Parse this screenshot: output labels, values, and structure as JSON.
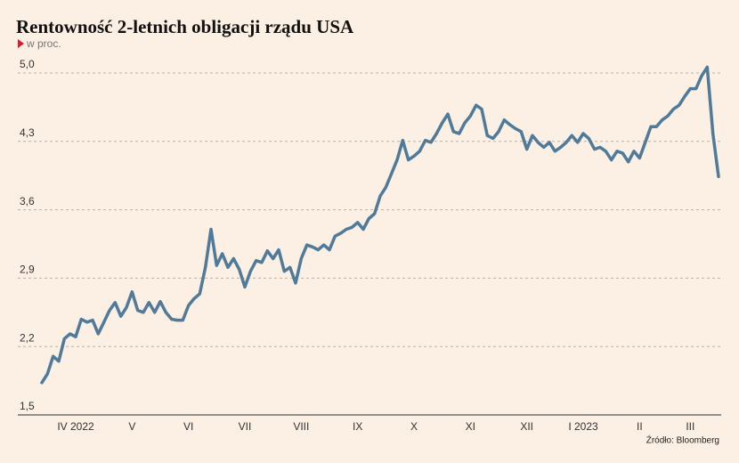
{
  "chart_data": {
    "type": "line",
    "title": "Rentowność 2-letnich obligacji rządu USA",
    "subtitle": "w proc.",
    "source": "Źródło: Bloomberg",
    "color": "#4f7a99",
    "grid": true,
    "ylim": [
      1.5,
      5.0
    ],
    "yticks": [
      {
        "value": 1.5,
        "label": "1,5"
      },
      {
        "value": 2.2,
        "label": "2,2"
      },
      {
        "value": 2.9,
        "label": "2,9"
      },
      {
        "value": 3.6,
        "label": "3,6"
      },
      {
        "value": 4.3,
        "label": "4,3"
      },
      {
        "value": 5.0,
        "label": "5,0"
      }
    ],
    "categories": [
      null,
      null,
      null,
      null,
      null,
      null,
      "IV 2022",
      null,
      null,
      null,
      null,
      null,
      null,
      null,
      null,
      null,
      "V",
      null,
      null,
      null,
      null,
      null,
      null,
      null,
      null,
      null,
      "VI",
      null,
      null,
      null,
      null,
      null,
      null,
      null,
      null,
      null,
      "VII",
      null,
      null,
      null,
      null,
      null,
      null,
      null,
      null,
      null,
      "VIII",
      null,
      null,
      null,
      null,
      null,
      null,
      null,
      null,
      null,
      "IX",
      null,
      null,
      null,
      null,
      null,
      null,
      null,
      null,
      null,
      "X",
      null,
      null,
      null,
      null,
      null,
      null,
      null,
      null,
      null,
      "XI",
      null,
      null,
      null,
      null,
      null,
      null,
      null,
      null,
      null,
      "XII",
      null,
      null,
      null,
      null,
      null,
      null,
      null,
      null,
      null,
      "I 2023",
      null,
      null,
      null,
      null,
      null,
      null,
      null,
      null,
      null,
      "II",
      null,
      null,
      null,
      null,
      null,
      null,
      null,
      null,
      "III",
      null,
      null,
      null,
      null,
      null
    ],
    "values": [
      1.83,
      1.92,
      2.1,
      2.05,
      2.28,
      2.33,
      2.3,
      2.48,
      2.45,
      2.47,
      2.33,
      2.45,
      2.57,
      2.65,
      2.51,
      2.6,
      2.76,
      2.57,
      2.55,
      2.65,
      2.55,
      2.66,
      2.55,
      2.48,
      2.47,
      2.47,
      2.62,
      2.69,
      2.74,
      3.01,
      3.4,
      3.03,
      3.15,
      3.01,
      3.1,
      2.99,
      2.81,
      2.97,
      3.08,
      3.06,
      3.18,
      3.1,
      3.19,
      2.97,
      3.01,
      2.85,
      3.1,
      3.24,
      3.22,
      3.19,
      3.24,
      3.19,
      3.33,
      3.36,
      3.4,
      3.42,
      3.47,
      3.4,
      3.51,
      3.56,
      3.74,
      3.83,
      3.97,
      4.11,
      4.31,
      4.11,
      4.15,
      4.2,
      4.31,
      4.29,
      4.38,
      4.49,
      4.58,
      4.4,
      4.38,
      4.49,
      4.56,
      4.67,
      4.63,
      4.36,
      4.33,
      4.4,
      4.52,
      4.47,
      4.43,
      4.4,
      4.22,
      4.36,
      4.29,
      4.24,
      4.29,
      4.2,
      4.24,
      4.29,
      4.36,
      4.29,
      4.38,
      4.33,
      4.22,
      4.24,
      4.2,
      4.11,
      4.2,
      4.18,
      4.09,
      4.2,
      4.13,
      4.29,
      4.45,
      4.45,
      4.52,
      4.56,
      4.63,
      4.67,
      4.76,
      4.84,
      4.84,
      4.97,
      5.06,
      4.38,
      3.94
    ]
  }
}
